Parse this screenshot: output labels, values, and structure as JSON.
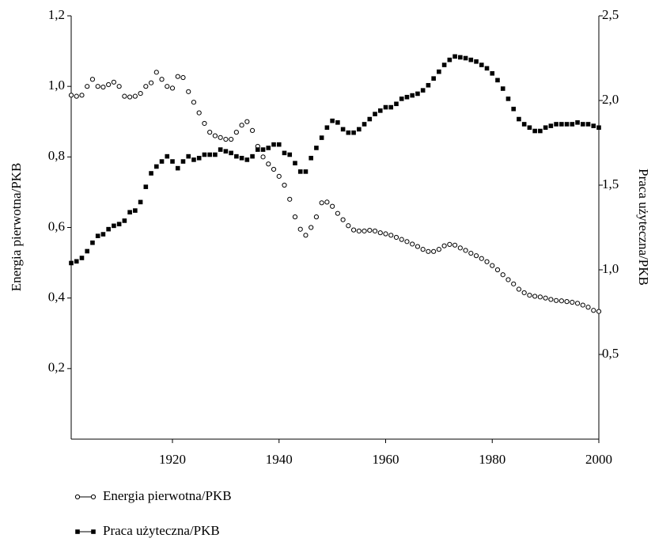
{
  "chart_data": {
    "type": "scatter",
    "x": [
      1901,
      1902,
      1903,
      1904,
      1905,
      1906,
      1907,
      1908,
      1909,
      1910,
      1911,
      1912,
      1913,
      1914,
      1915,
      1916,
      1917,
      1918,
      1919,
      1920,
      1921,
      1922,
      1923,
      1924,
      1925,
      1926,
      1927,
      1928,
      1929,
      1930,
      1931,
      1932,
      1933,
      1934,
      1935,
      1936,
      1937,
      1938,
      1939,
      1940,
      1941,
      1942,
      1943,
      1944,
      1945,
      1946,
      1947,
      1948,
      1949,
      1950,
      1951,
      1952,
      1953,
      1954,
      1955,
      1956,
      1957,
      1958,
      1959,
      1960,
      1961,
      1962,
      1963,
      1964,
      1965,
      1966,
      1967,
      1968,
      1969,
      1970,
      1971,
      1972,
      1973,
      1974,
      1975,
      1976,
      1977,
      1978,
      1979,
      1980,
      1981,
      1982,
      1983,
      1984,
      1985,
      1986,
      1987,
      1988,
      1989,
      1990,
      1991,
      1992,
      1993,
      1994,
      1995,
      1996,
      1997,
      1998,
      1999,
      2000
    ],
    "series": [
      {
        "name": "Energia pierwotna/PKB",
        "color": "#000000",
        "marker": "circle",
        "values": [
          0.975,
          0.972,
          0.975,
          1.0,
          1.02,
          1.0,
          0.998,
          1.005,
          1.012,
          1.0,
          0.972,
          0.97,
          0.972,
          0.98,
          1.0,
          1.01,
          1.04,
          1.02,
          1.0,
          0.995,
          1.028,
          1.025,
          0.985,
          0.955,
          0.925,
          0.895,
          0.87,
          0.86,
          0.855,
          0.85,
          0.85,
          0.87,
          0.89,
          0.9,
          0.875,
          0.83,
          0.8,
          0.78,
          0.765,
          0.745,
          0.72,
          0.68,
          0.63,
          0.595,
          0.578,
          0.6,
          0.63,
          0.67,
          0.672,
          0.66,
          0.64,
          0.622,
          0.605,
          0.593,
          0.59,
          0.59,
          0.592,
          0.59,
          0.585,
          0.582,
          0.578,
          0.572,
          0.566,
          0.56,
          0.553,
          0.546,
          0.538,
          0.532,
          0.532,
          0.538,
          0.548,
          0.552,
          0.55,
          0.542,
          0.535,
          0.527,
          0.52,
          0.512,
          0.503,
          0.492,
          0.48,
          0.466,
          0.452,
          0.44,
          0.425,
          0.415,
          0.408,
          0.405,
          0.403,
          0.4,
          0.396,
          0.393,
          0.392,
          0.39,
          0.388,
          0.385,
          0.38,
          0.374,
          0.365,
          0.362
        ]
      },
      {
        "name": "Praca użyteczna/PKB",
        "color": "#000000",
        "marker": "square",
        "axis": "y2",
        "values": [
          1.04,
          1.05,
          1.07,
          1.11,
          1.16,
          1.2,
          1.21,
          1.24,
          1.26,
          1.27,
          1.29,
          1.34,
          1.35,
          1.4,
          1.49,
          1.57,
          1.61,
          1.64,
          1.67,
          1.64,
          1.6,
          1.64,
          1.67,
          1.65,
          1.66,
          1.68,
          1.68,
          1.68,
          1.71,
          1.7,
          1.69,
          1.67,
          1.66,
          1.65,
          1.67,
          1.71,
          1.71,
          1.72,
          1.74,
          1.74,
          1.69,
          1.68,
          1.63,
          1.58,
          1.58,
          1.66,
          1.72,
          1.78,
          1.84,
          1.88,
          1.87,
          1.83,
          1.81,
          1.81,
          1.83,
          1.86,
          1.89,
          1.92,
          1.94,
          1.96,
          1.96,
          1.98,
          2.01,
          2.02,
          2.03,
          2.04,
          2.06,
          2.09,
          2.13,
          2.17,
          2.21,
          2.24,
          2.26,
          2.255,
          2.25,
          2.24,
          2.23,
          2.21,
          2.19,
          2.16,
          2.12,
          2.07,
          2.01,
          1.95,
          1.89,
          1.86,
          1.84,
          1.82,
          1.82,
          1.84,
          1.85,
          1.86,
          1.86,
          1.86,
          1.86,
          1.87,
          1.86,
          1.86,
          1.85,
          1.84
        ]
      }
    ],
    "ylabel": "Energia pierwotna/PKB",
    "y2label": "Praca użyteczna/PKB",
    "xlim": [
      1901,
      2000
    ],
    "xticks": [
      1920,
      1940,
      1960,
      1980,
      2000
    ],
    "ylim": [
      0,
      1.2
    ],
    "yticks": [
      {
        "value": 0.2,
        "label": "0,2"
      },
      {
        "value": 0.4,
        "label": "0,4"
      },
      {
        "value": 0.6,
        "label": "0,6"
      },
      {
        "value": 0.8,
        "label": "0,8"
      },
      {
        "value": 1.0,
        "label": "1,0"
      },
      {
        "value": 1.2,
        "label": "1,2"
      }
    ],
    "y2lim": [
      0,
      2.5
    ],
    "y2ticks": [
      {
        "value": 0.5,
        "label": "0,5"
      },
      {
        "value": 1.0,
        "label": "1,0"
      },
      {
        "value": 1.5,
        "label": "1,5"
      },
      {
        "value": 2.0,
        "label": "2,0"
      },
      {
        "value": 2.5,
        "label": "2,5"
      }
    ],
    "legend": "bottom"
  }
}
